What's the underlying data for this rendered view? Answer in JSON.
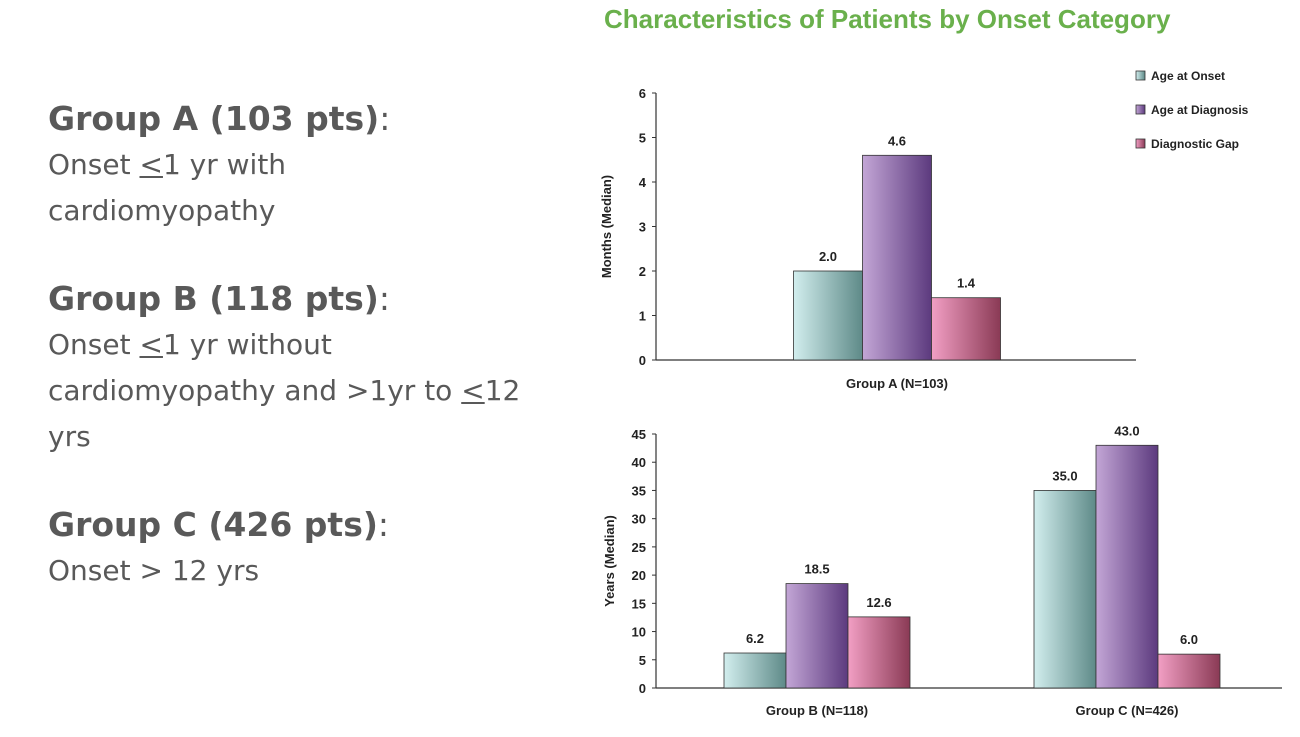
{
  "groups": [
    {
      "heading": "Group A (103 pts)",
      "colon": ":",
      "description_html": "Onset <u>&lt;</u>1 yr with\ncardiomyopathy"
    },
    {
      "heading": "Group B (118 pts)",
      "colon": ":",
      "description_html": "Onset <u>&lt;</u>1 yr without\ncardiomyopathy and &gt;1yr to <u>&lt;</u>12\nyrs"
    },
    {
      "heading": "Group C (426 pts)",
      "colon": ":",
      "description_html": "Onset &gt; 12 yrs"
    }
  ],
  "chart_title": "Characteristics of Patients by Onset Category",
  "series_colors": {
    "Age at Onset": [
      "#d2eeee",
      "#5e8a88"
    ],
    "Age at Diagnosis": [
      "#c3a6d6",
      "#5c3a7e"
    ],
    "Diagnostic Gap": [
      "#f29fc4",
      "#8a3a55"
    ]
  },
  "chart_data": [
    {
      "type": "bar",
      "title": "Characteristics of Patients by Onset Category",
      "categories": [
        "Group A (N=103)"
      ],
      "ylabel": "Months (Median)",
      "ylim": [
        0,
        6
      ],
      "yticks": [
        0,
        1,
        2,
        3,
        4,
        5,
        6
      ],
      "legend": "top-right",
      "series": [
        {
          "name": "Age at Onset",
          "values": [
            2.0
          ],
          "labels": [
            "2.0"
          ]
        },
        {
          "name": "Age at Diagnosis",
          "values": [
            4.6
          ],
          "labels": [
            "4.6"
          ]
        },
        {
          "name": "Diagnostic Gap",
          "values": [
            1.4
          ],
          "labels": [
            "1.4"
          ]
        }
      ]
    },
    {
      "type": "bar",
      "categories": [
        "Group B (N=118)",
        "Group C (N=426)"
      ],
      "ylabel": "Years (Median)",
      "ylim": [
        0,
        45
      ],
      "yticks": [
        0,
        5,
        10,
        15,
        20,
        25,
        30,
        35,
        40,
        45
      ],
      "series": [
        {
          "name": "Age at Onset",
          "values": [
            6.2,
            35.0
          ],
          "labels": [
            "6.2",
            "35.0"
          ]
        },
        {
          "name": "Age at Diagnosis",
          "values": [
            18.5,
            43.0
          ],
          "labels": [
            "18.5",
            "43.0"
          ]
        },
        {
          "name": "Diagnostic Gap",
          "values": [
            12.6,
            6.0
          ],
          "labels": [
            "12.6",
            "6.0"
          ]
        }
      ]
    }
  ]
}
